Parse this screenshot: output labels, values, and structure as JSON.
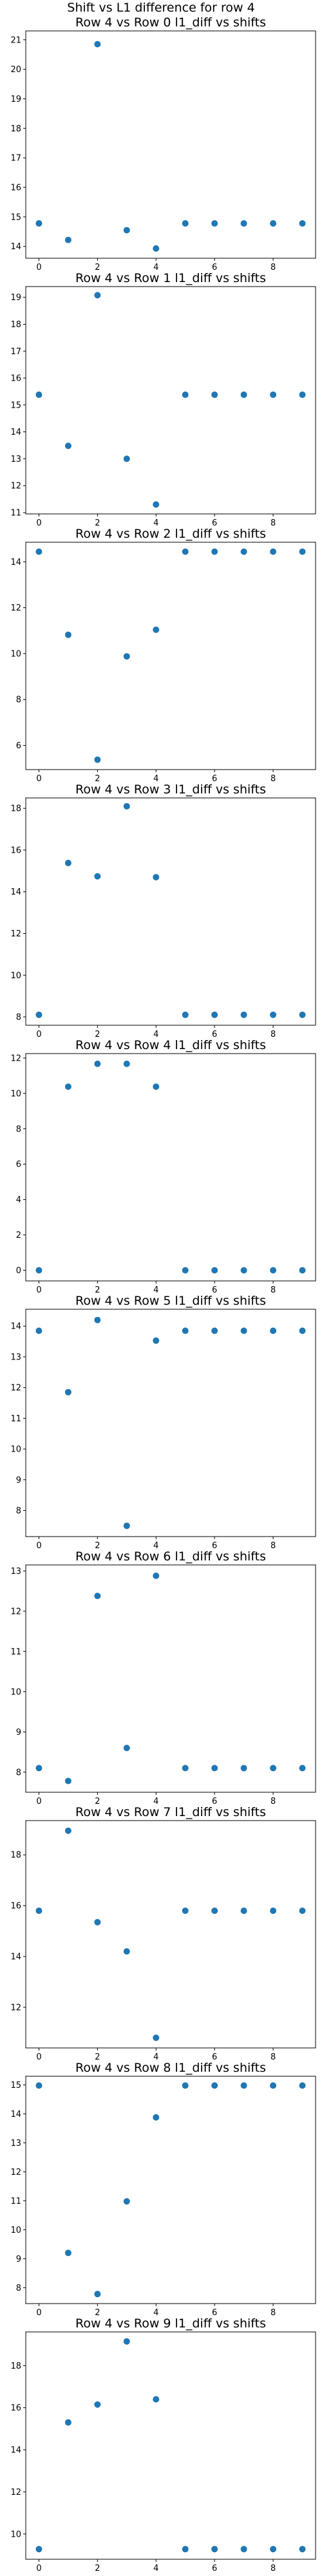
{
  "figure_title": "Shift vs L1 difference for row 4",
  "marker_color": "#1f77b4",
  "chart_data": [
    {
      "type": "scatter",
      "title": "Row 4 vs Row 0 l1_diff vs shifts",
      "x": [
        0,
        1,
        2,
        3,
        4,
        5,
        6,
        7,
        8,
        9
      ],
      "y": [
        14.78,
        14.22,
        20.85,
        14.55,
        13.93,
        14.78,
        14.78,
        14.78,
        14.78,
        14.78
      ],
      "xlim": [
        -0.45,
        9.45
      ],
      "ylim": [
        13.6,
        21.3
      ],
      "xticks": [
        0,
        2,
        4,
        6,
        8
      ],
      "yticks": [
        14,
        15,
        16,
        17,
        18,
        19,
        20,
        21
      ]
    },
    {
      "type": "scatter",
      "title": "Row 4 vs Row 1 l1_diff vs shifts",
      "x": [
        0,
        1,
        2,
        3,
        4,
        5,
        6,
        7,
        8,
        9
      ],
      "y": [
        15.38,
        13.48,
        19.08,
        13.0,
        11.3,
        15.38,
        15.38,
        15.38,
        15.38,
        15.38
      ],
      "xlim": [
        -0.45,
        9.45
      ],
      "ylim": [
        10.95,
        19.4
      ],
      "xticks": [
        0,
        2,
        4,
        6,
        8
      ],
      "yticks": [
        11,
        12,
        13,
        14,
        15,
        16,
        17,
        18,
        19
      ]
    },
    {
      "type": "scatter",
      "title": "Row 4 vs Row 2 l1_diff vs shifts",
      "x": [
        0,
        1,
        2,
        3,
        4,
        5,
        6,
        7,
        8,
        9
      ],
      "y": [
        14.44,
        10.82,
        5.38,
        9.88,
        11.04,
        14.44,
        14.44,
        14.44,
        14.44,
        14.44
      ],
      "xlim": [
        -0.45,
        9.45
      ],
      "ylim": [
        4.95,
        14.85
      ],
      "xticks": [
        0,
        2,
        4,
        6,
        8
      ],
      "yticks": [
        6,
        8,
        10,
        12,
        14
      ]
    },
    {
      "type": "scatter",
      "title": "Row 4 vs Row 3 l1_diff vs shifts",
      "x": [
        0,
        1,
        2,
        3,
        4,
        5,
        6,
        7,
        8,
        9
      ],
      "y": [
        8.1,
        15.38,
        14.74,
        18.1,
        14.7,
        8.1,
        8.1,
        8.1,
        8.1,
        8.1
      ],
      "xlim": [
        -0.45,
        9.45
      ],
      "ylim": [
        7.6,
        18.5
      ],
      "xticks": [
        0,
        2,
        4,
        6,
        8
      ],
      "yticks": [
        8,
        10,
        12,
        14,
        16,
        18
      ]
    },
    {
      "type": "scatter",
      "title": "Row 4 vs Row 4 l1_diff vs shifts",
      "x": [
        0,
        1,
        2,
        3,
        4,
        5,
        6,
        7,
        8,
        9
      ],
      "y": [
        0.0,
        10.38,
        11.67,
        11.67,
        10.38,
        0.0,
        0.0,
        0.0,
        0.0,
        0.0
      ],
      "xlim": [
        -0.45,
        9.45
      ],
      "ylim": [
        -0.6,
        12.25
      ],
      "xticks": [
        0,
        2,
        4,
        6,
        8
      ],
      "yticks": [
        0,
        2,
        4,
        6,
        8,
        10,
        12
      ]
    },
    {
      "type": "scatter",
      "title": "Row 4 vs Row 5 l1_diff vs shifts",
      "x": [
        0,
        1,
        2,
        3,
        4,
        5,
        6,
        7,
        8,
        9
      ],
      "y": [
        13.85,
        11.85,
        14.2,
        7.5,
        13.53,
        13.85,
        13.85,
        13.85,
        13.85,
        13.85
      ],
      "xlim": [
        -0.45,
        9.45
      ],
      "ylim": [
        7.15,
        14.55
      ],
      "xticks": [
        0,
        2,
        4,
        6,
        8
      ],
      "yticks": [
        8,
        9,
        10,
        11,
        12,
        13,
        14
      ]
    },
    {
      "type": "scatter",
      "title": "Row 4 vs Row 6 l1_diff vs shifts",
      "x": [
        0,
        1,
        2,
        3,
        4,
        5,
        6,
        7,
        8,
        9
      ],
      "y": [
        8.1,
        7.78,
        12.38,
        8.6,
        12.88,
        8.1,
        8.1,
        8.1,
        8.1,
        8.1
      ],
      "xlim": [
        -0.45,
        9.45
      ],
      "ylim": [
        7.5,
        13.15
      ],
      "xticks": [
        0,
        2,
        4,
        6,
        8
      ],
      "yticks": [
        8,
        9,
        10,
        11,
        12,
        13
      ]
    },
    {
      "type": "scatter",
      "title": "Row 4 vs Row 7 l1_diff vs shifts",
      "x": [
        0,
        1,
        2,
        3,
        4,
        5,
        6,
        7,
        8,
        9
      ],
      "y": [
        15.8,
        18.95,
        15.35,
        14.2,
        10.8,
        15.8,
        15.8,
        15.8,
        15.8,
        15.8
      ],
      "xlim": [
        -0.45,
        9.45
      ],
      "ylim": [
        10.4,
        19.35
      ],
      "xticks": [
        0,
        2,
        4,
        6,
        8
      ],
      "yticks": [
        12,
        14,
        16,
        18
      ]
    },
    {
      "type": "scatter",
      "title": "Row 4 vs Row 8 l1_diff vs shifts",
      "x": [
        0,
        1,
        2,
        3,
        4,
        5,
        6,
        7,
        8,
        9
      ],
      "y": [
        14.98,
        9.2,
        7.78,
        10.98,
        13.88,
        14.98,
        14.98,
        14.98,
        14.98,
        14.98
      ],
      "xlim": [
        -0.45,
        9.45
      ],
      "ylim": [
        7.45,
        15.3
      ],
      "xticks": [
        0,
        2,
        4,
        6,
        8
      ],
      "yticks": [
        8,
        9,
        10,
        11,
        12,
        13,
        14,
        15
      ]
    },
    {
      "type": "scatter",
      "title": "Row 4 vs Row 9 l1_diff vs shifts",
      "x": [
        0,
        1,
        2,
        3,
        4,
        5,
        6,
        7,
        8,
        9
      ],
      "y": [
        9.28,
        15.3,
        16.15,
        19.15,
        16.4,
        9.28,
        9.28,
        9.28,
        9.28,
        9.28
      ],
      "xlim": [
        -0.45,
        9.45
      ],
      "ylim": [
        8.8,
        19.6
      ],
      "xticks": [
        0,
        2,
        4,
        6,
        8
      ],
      "yticks": [
        10,
        12,
        14,
        16,
        18
      ]
    }
  ]
}
